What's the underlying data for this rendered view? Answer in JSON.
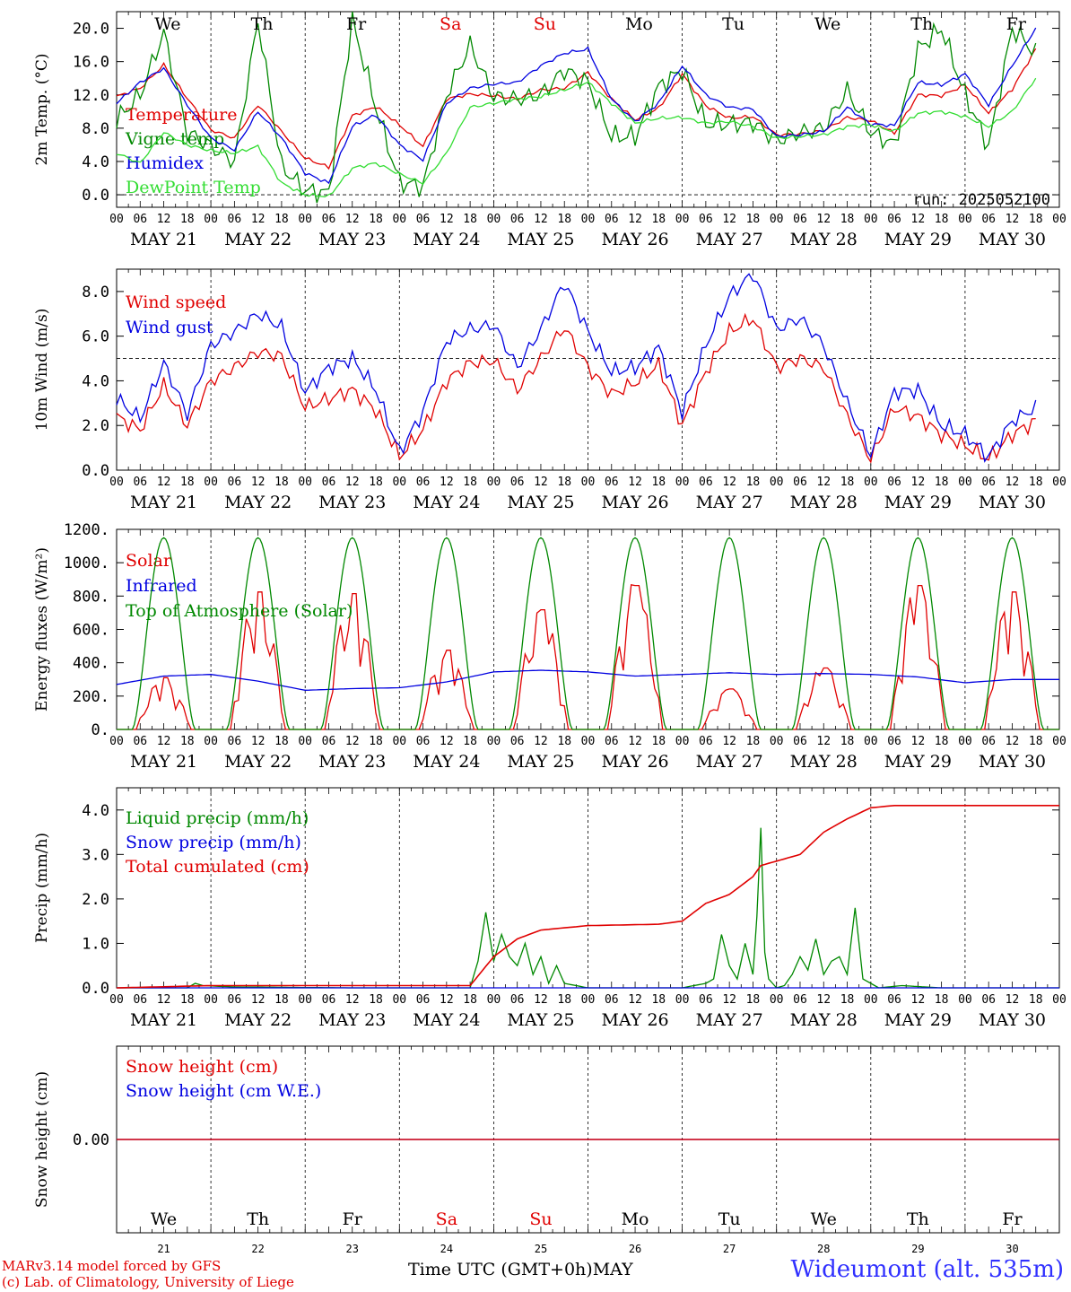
{
  "run_label": "run: 2025052100",
  "day_names": [
    "We",
    "Th",
    "Fr",
    "Sa",
    "Su",
    "Mo",
    "Tu",
    "We",
    "Th",
    "Fr"
  ],
  "day_name_colors": [
    "#000000",
    "#000000",
    "#000000",
    "#e00000",
    "#e00000",
    "#000000",
    "#000000",
    "#000000",
    "#000000",
    "#000000"
  ],
  "date_labels": [
    "MAY 21",
    "MAY 22",
    "MAY 23",
    "MAY 24",
    "MAY 25",
    "MAY 26",
    "MAY 27",
    "MAY 28",
    "MAY 29",
    "MAY 30"
  ],
  "hour_ticks": [
    "00",
    "06",
    "12",
    "18"
  ],
  "final_hour_tick": "00",
  "bottom_day_numbers": [
    "21",
    "22",
    "23",
    "24",
    "25",
    "26",
    "27",
    "28",
    "29",
    "30"
  ],
  "footer": {
    "credit_line1": "MARv3.14 model forced by GFS",
    "credit_line2": "(c) Lab. of Climatology, University of Liege",
    "time_axis": "Time UTC (GMT+0h)",
    "month": "MAY",
    "station": "Wideumont (alt. 535m)"
  },
  "chart_data": [
    {
      "type": "line",
      "ylabel": "2m Temp. (°C)",
      "ylim": [
        -1.5,
        22
      ],
      "yticks": [
        "0.0",
        "4.0",
        "8.0",
        "12.0",
        "16.0",
        "20.0"
      ],
      "x_unit": "hours since MAY 21 00 UTC",
      "series": [
        {
          "name": "Temperature",
          "color": "#e00000",
          "x": [
            0,
            6,
            12,
            18,
            24,
            30,
            36,
            42,
            48,
            54,
            60,
            66,
            72,
            78,
            84,
            90,
            96,
            102,
            108,
            114,
            120,
            126,
            132,
            138,
            144,
            150,
            156,
            162,
            168,
            174,
            180,
            186,
            192,
            198,
            204,
            210,
            216,
            222,
            228,
            234
          ],
          "y": [
            11.8,
            12.8,
            15.6,
            11.6,
            7.8,
            6.8,
            10.8,
            7.6,
            4.4,
            3.3,
            9.5,
            10.6,
            8.4,
            5.8,
            11.5,
            12.1,
            11.9,
            11.5,
            12.6,
            12.8,
            14.7,
            11.5,
            9.0,
            10.4,
            14.5,
            10.7,
            9.2,
            9.4,
            7.2,
            7.3,
            7.7,
            9.3,
            8.9,
            7.4,
            12.0,
            11.9,
            13.2,
            9.8,
            12.7,
            17.5
          ]
        },
        {
          "name": "Vigne temp",
          "color": "#008800",
          "x": [
            0,
            6,
            12,
            18,
            24,
            30,
            36,
            42,
            48,
            54,
            60,
            66,
            72,
            78,
            84,
            90,
            96,
            102,
            108,
            114,
            120,
            126,
            132,
            138,
            144,
            150,
            156,
            162,
            168,
            174,
            180,
            186,
            192,
            198,
            204,
            210,
            216,
            222,
            228,
            234
          ],
          "y": [
            9.0,
            12.0,
            19.5,
            7.5,
            5.8,
            4.0,
            21.0,
            3.4,
            0.5,
            0.2,
            21.0,
            10.5,
            1.5,
            1.0,
            12.0,
            18.0,
            11.8,
            11.5,
            12.0,
            15.0,
            13.5,
            7.0,
            7.0,
            13.0,
            15.0,
            8.5,
            8.5,
            8.7,
            6.5,
            7.5,
            8.0,
            12.5,
            7.5,
            6.0,
            17.5,
            20.0,
            12.0,
            5.8,
            20.0,
            17.0
          ]
        },
        {
          "name": "Humidex",
          "color": "#0000e0",
          "x": [
            0,
            6,
            12,
            18,
            24,
            30,
            36,
            42,
            48,
            54,
            60,
            66,
            72,
            78,
            84,
            90,
            96,
            102,
            108,
            114,
            120,
            126,
            132,
            138,
            144,
            150,
            156,
            162,
            168,
            174,
            180,
            186,
            192,
            198,
            204,
            210,
            216,
            222,
            228,
            234
          ],
          "y": [
            11.0,
            13.5,
            15.2,
            10.8,
            6.8,
            5.4,
            10.0,
            6.8,
            2.6,
            1.4,
            8.2,
            9.6,
            6.0,
            4.2,
            11.0,
            12.8,
            13.3,
            13.5,
            15.5,
            17.0,
            17.5,
            11.5,
            8.8,
            11.0,
            15.5,
            12.0,
            10.5,
            10.3,
            7.0,
            7.2,
            7.6,
            10.5,
            8.5,
            8.3,
            13.5,
            13.2,
            14.5,
            10.8,
            15.5,
            20.0
          ]
        },
        {
          "name": "DewPoint Temp",
          "color": "#33dd33",
          "x": [
            0,
            6,
            12,
            18,
            24,
            30,
            36,
            42,
            48,
            54,
            60,
            66,
            72,
            78,
            84,
            90,
            96,
            102,
            108,
            114,
            120,
            126,
            132,
            138,
            144,
            150,
            156,
            162,
            168,
            174,
            180,
            186,
            192,
            198,
            204,
            210,
            216,
            222,
            228,
            234
          ],
          "y": [
            5.0,
            3.8,
            7.5,
            6.0,
            5.3,
            5.0,
            5.8,
            1.4,
            0.0,
            -0.2,
            3.2,
            3.8,
            2.5,
            1.4,
            5.0,
            10.5,
            11.0,
            11.5,
            11.8,
            12.6,
            13.5,
            11.0,
            8.6,
            9.2,
            9.3,
            8.6,
            8.8,
            8.2,
            6.8,
            7.0,
            7.2,
            8.2,
            8.4,
            7.6,
            9.8,
            10.0,
            9.4,
            8.2,
            10.0,
            14.0
          ]
        }
      ],
      "legend_placement": "top-left"
    },
    {
      "type": "line",
      "ylabel": "10m Wind (m/s)",
      "ylim": [
        0,
        9
      ],
      "yticks": [
        "0.0",
        "2.0",
        "4.0",
        "6.0",
        "8.0"
      ],
      "reference_line": 5,
      "series": [
        {
          "name": "Wind speed",
          "color": "#e00000",
          "x": [
            0,
            6,
            12,
            18,
            24,
            30,
            36,
            42,
            48,
            54,
            60,
            66,
            72,
            78,
            84,
            90,
            96,
            102,
            108,
            114,
            120,
            126,
            132,
            138,
            144,
            150,
            156,
            162,
            168,
            174,
            180,
            186,
            192,
            198,
            204,
            210,
            216,
            222,
            228,
            234
          ],
          "y": [
            2.4,
            1.8,
            3.8,
            2.0,
            4.0,
            4.6,
            5.3,
            5.1,
            2.8,
            3.2,
            3.6,
            2.7,
            0.6,
            1.8,
            4.0,
            4.8,
            4.9,
            3.6,
            5.0,
            6.4,
            4.6,
            3.4,
            3.9,
            4.7,
            2.0,
            4.4,
            6.2,
            6.8,
            4.6,
            5.0,
            4.6,
            2.4,
            0.5,
            2.8,
            2.4,
            1.6,
            1.1,
            0.5,
            1.6,
            2.2
          ]
        },
        {
          "name": "Wind gust",
          "color": "#0000e0",
          "x": [
            0,
            6,
            12,
            18,
            24,
            30,
            36,
            42,
            48,
            54,
            60,
            66,
            72,
            78,
            84,
            90,
            96,
            102,
            108,
            114,
            120,
            126,
            132,
            138,
            144,
            150,
            156,
            162,
            168,
            174,
            180,
            186,
            192,
            198,
            204,
            210,
            216,
            222,
            228,
            234
          ],
          "y": [
            3.2,
            2.3,
            4.8,
            2.5,
            5.6,
            6.2,
            7.0,
            6.4,
            3.5,
            4.6,
            5.0,
            3.6,
            0.8,
            2.6,
            5.8,
            6.3,
            6.5,
            4.6,
            6.3,
            8.4,
            6.2,
            4.4,
            4.6,
            5.5,
            2.6,
            5.6,
            7.8,
            8.8,
            6.3,
            6.8,
            5.6,
            3.0,
            0.7,
            3.5,
            3.6,
            2.0,
            1.6,
            0.6,
            2.2,
            2.8
          ]
        }
      ],
      "legend_placement": "top-left"
    },
    {
      "type": "line",
      "ylabel": "Energy fluxes (W/m²)",
      "ylim": [
        0,
        1200
      ],
      "yticks": [
        "0.",
        "200.",
        "400.",
        "600.",
        "800.",
        "1000.",
        "1200."
      ],
      "series": [
        {
          "name": "Solar",
          "color": "#e00000",
          "daily_peaks": [
            320,
            850,
            840,
            490,
            740,
            890,
            250,
            380,
            890,
            850
          ]
        },
        {
          "name": "Infrared",
          "color": "#0000e0",
          "x": [
            0,
            12,
            24,
            36,
            48,
            60,
            72,
            84,
            96,
            108,
            120,
            132,
            144,
            156,
            168,
            180,
            192,
            204,
            216,
            228,
            240
          ],
          "y": [
            270,
            320,
            330,
            290,
            235,
            245,
            250,
            285,
            345,
            355,
            345,
            320,
            330,
            340,
            330,
            335,
            330,
            315,
            280,
            300,
            300
          ]
        },
        {
          "name": "Top of Atmosphere (Solar)",
          "color": "#008800",
          "daily_peak": 1150
        }
      ],
      "legend_placement": "top-left"
    },
    {
      "type": "line",
      "ylabel": "Precip (mm/h)",
      "ylim": [
        0,
        4.5
      ],
      "yticks": [
        "0.0",
        "1.0",
        "2.0",
        "3.0",
        "4.0"
      ],
      "series": [
        {
          "name": "Liquid precip (mm/h)",
          "color": "#008800",
          "x": [
            0,
            18,
            20,
            22,
            30,
            60,
            84,
            90,
            92,
            94,
            96,
            98,
            100,
            102,
            104,
            106,
            108,
            110,
            112,
            114,
            120,
            144,
            150,
            152,
            154,
            156,
            158,
            160,
            162,
            163,
            164,
            165,
            166,
            168,
            170,
            172,
            174,
            176,
            178,
            180,
            182,
            184,
            186,
            188,
            190,
            192,
            194,
            200,
            210,
            240
          ],
          "y": [
            0,
            0,
            0.1,
            0.05,
            0.02,
            0,
            0,
            0,
            0.6,
            1.7,
            0.6,
            1.2,
            0.7,
            0.5,
            1.0,
            0.3,
            0.7,
            0.1,
            0.5,
            0.1,
            0,
            0,
            0.1,
            0.2,
            1.2,
            0.5,
            0.2,
            1.0,
            0.3,
            1.6,
            3.6,
            0.8,
            0.2,
            0,
            0.05,
            0.3,
            0.7,
            0.4,
            1.1,
            0.3,
            0.6,
            0.7,
            0.3,
            1.8,
            0.2,
            0.1,
            0,
            0.05,
            0,
            0
          ]
        },
        {
          "name": "Snow precip (mm/h)",
          "color": "#0000e0",
          "x": [
            0,
            240
          ],
          "y": [
            0,
            0
          ]
        },
        {
          "name": "Total cumulated (cm)",
          "color": "#e00000",
          "x": [
            0,
            24,
            60,
            84,
            90,
            96,
            102,
            108,
            120,
            132,
            138,
            144,
            150,
            156,
            162,
            164,
            166,
            168,
            174,
            180,
            186,
            192,
            198,
            240
          ],
          "y": [
            0,
            0.05,
            0.05,
            0.05,
            0.05,
            0.7,
            1.1,
            1.3,
            1.4,
            1.42,
            1.43,
            1.5,
            1.9,
            2.1,
            2.5,
            2.75,
            2.8,
            2.85,
            3.0,
            3.5,
            3.8,
            4.05,
            4.1,
            4.1
          ]
        }
      ],
      "legend_placement": "top-left"
    },
    {
      "type": "line",
      "ylabel": "Snow height (cm)",
      "ylim": [
        -1,
        1
      ],
      "yticks": [
        "0.00"
      ],
      "series": [
        {
          "name": "Snow height (cm)",
          "color": "#e00000",
          "x": [
            0,
            240
          ],
          "y": [
            0,
            0
          ]
        },
        {
          "name": "Snow height (cm W.E.)",
          "color": "#0000e0",
          "x": [
            0,
            240
          ],
          "y": [
            0,
            0
          ]
        }
      ],
      "legend_placement": "top-left"
    }
  ]
}
